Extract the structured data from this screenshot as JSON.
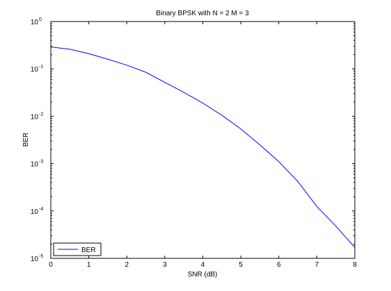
{
  "chart_data": {
    "type": "line",
    "title": "Binary BPSK with N = 2 M = 3",
    "xlabel": "SNR (dB)",
    "ylabel": "BER",
    "xlim": [
      0,
      8
    ],
    "ylim": [
      1e-05,
      1
    ],
    "yscale": "log",
    "grid": false,
    "legend_position": "bottom-left",
    "x_ticks": [
      0,
      1,
      2,
      3,
      4,
      5,
      6,
      7,
      8
    ],
    "x_tick_labels": [
      "0",
      "1",
      "2",
      "3",
      "4",
      "5",
      "6",
      "7",
      "8"
    ],
    "y_ticks": [
      {
        "value": 1,
        "base": "10",
        "exp": "0"
      },
      {
        "value": 0.1,
        "base": "10",
        "exp": "-1"
      },
      {
        "value": 0.01,
        "base": "10",
        "exp": "-2"
      },
      {
        "value": 0.001,
        "base": "10",
        "exp": "-3"
      },
      {
        "value": 0.0001,
        "base": "10",
        "exp": "-4"
      },
      {
        "value": 1e-05,
        "base": "10",
        "exp": "-5"
      }
    ],
    "series": [
      {
        "name": "BER",
        "color": "#0000ff",
        "x": [
          0,
          0.5,
          1,
          1.5,
          2,
          2.5,
          3,
          3.5,
          4,
          4.5,
          5,
          5.5,
          6,
          6.5,
          7,
          7.5,
          8
        ],
        "y": [
          0.29,
          0.26,
          0.21,
          0.16,
          0.12,
          0.085,
          0.052,
          0.032,
          0.019,
          0.0105,
          0.0054,
          0.0025,
          0.0011,
          0.00042,
          0.000125,
          4.8e-05,
          1.7e-05
        ]
      }
    ]
  }
}
